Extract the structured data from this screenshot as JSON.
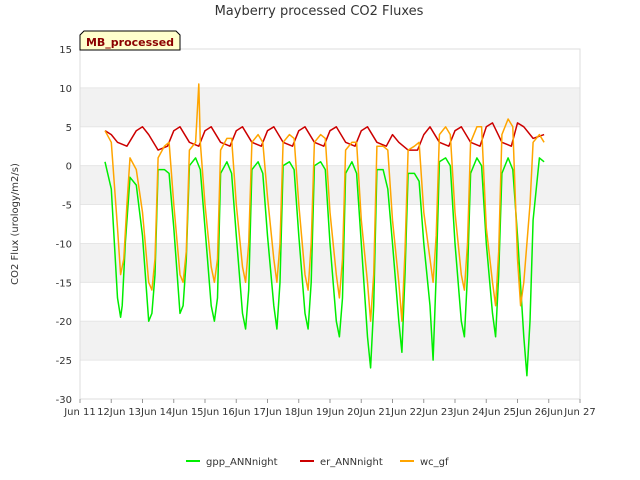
{
  "chart_data": {
    "type": "line",
    "title": "Mayberry processed CO2 Fluxes",
    "ylabel": "CO2 Flux (urology/m2/s)",
    "xlabel": "",
    "ylim": [
      -30,
      15
    ],
    "xlim": [
      11,
      27
    ],
    "yticks": [
      15,
      10,
      5,
      0,
      -5,
      -10,
      -15,
      -20,
      -25,
      -30
    ],
    "xticks": [
      {
        "v": 11,
        "label": "Jun 11"
      },
      {
        "v": 12,
        "label": "12Jun"
      },
      {
        "v": 13,
        "label": "13Jun"
      },
      {
        "v": 14,
        "label": "14Jun"
      },
      {
        "v": 15,
        "label": "15Jun"
      },
      {
        "v": 16,
        "label": "16Jun"
      },
      {
        "v": 17,
        "label": "17Jun"
      },
      {
        "v": 18,
        "label": "18Jun"
      },
      {
        "v": 19,
        "label": "19Jun"
      },
      {
        "v": 20,
        "label": "20Jun"
      },
      {
        "v": 21,
        "label": "21Jun"
      },
      {
        "v": 22,
        "label": "22Jun"
      },
      {
        "v": 23,
        "label": "23Jun"
      },
      {
        "v": 24,
        "label": "24Jun"
      },
      {
        "v": 25,
        "label": "25Jun"
      },
      {
        "v": 26,
        "label": "26Jun"
      },
      {
        "v": 27,
        "label": "Jun 27"
      }
    ],
    "badge": "MB_processed",
    "legend_position": "bottom",
    "series": [
      {
        "name": "gpp_ANNnight",
        "color": "#00ee00",
        "x": [
          11.8,
          12.0,
          12.2,
          12.3,
          12.35,
          12.45,
          12.6,
          12.8,
          13.0,
          13.2,
          13.3,
          13.4,
          13.5,
          13.7,
          13.85,
          14.0,
          14.2,
          14.3,
          14.4,
          14.5,
          14.7,
          14.85,
          15.0,
          15.2,
          15.3,
          15.4,
          15.5,
          15.7,
          15.85,
          16.0,
          16.2,
          16.3,
          16.4,
          16.5,
          16.7,
          16.85,
          17.0,
          17.2,
          17.3,
          17.4,
          17.5,
          17.7,
          17.85,
          18.0,
          18.2,
          18.3,
          18.4,
          18.5,
          18.7,
          18.85,
          19.0,
          19.2,
          19.3,
          19.4,
          19.5,
          19.7,
          19.85,
          20.0,
          20.2,
          20.3,
          20.4,
          20.5,
          20.7,
          20.85,
          21.0,
          21.2,
          21.3,
          21.4,
          21.5,
          21.7,
          21.85,
          22.0,
          22.2,
          22.3,
          22.4,
          22.5,
          22.7,
          22.85,
          23.0,
          23.2,
          23.3,
          23.4,
          23.5,
          23.7,
          23.85,
          24.0,
          24.2,
          24.3,
          24.4,
          24.5,
          24.7,
          24.85,
          25.0,
          25.2,
          25.3,
          25.4,
          25.5,
          25.7,
          25.85
        ],
        "y": [
          0.5,
          -3,
          -17,
          -19.5,
          -18,
          -10,
          -1.5,
          -2.5,
          -9,
          -20,
          -19,
          -14,
          -0.5,
          -0.5,
          -1,
          -8,
          -19,
          -18,
          -12,
          0,
          1,
          -0.5,
          -8,
          -18,
          -20,
          -17,
          -1,
          0.5,
          -1,
          -9,
          -19,
          -21,
          -16,
          -0.5,
          0.5,
          -1,
          -9,
          -18,
          -21,
          -15,
          0,
          0.5,
          -0.5,
          -9,
          -19,
          -21,
          -15,
          0,
          0.5,
          -0.5,
          -10,
          -20,
          -22,
          -17,
          -1,
          0.5,
          -1,
          -10,
          -22,
          -26,
          -18,
          -0.5,
          -0.5,
          -3,
          -10,
          -20,
          -24,
          -14,
          -1,
          -1,
          -2,
          -10,
          -18,
          -25,
          -14,
          0.5,
          1,
          0,
          -10,
          -20,
          -22,
          -14,
          -1,
          1,
          0,
          -10,
          -19,
          -22,
          -14,
          -1,
          1,
          -0.5,
          -9,
          -22,
          -27,
          -20,
          -7,
          1,
          0.5
        ]
      },
      {
        "name": "er_ANNnight",
        "color": "#cc0000",
        "x": [
          11.8,
          12.0,
          12.2,
          12.5,
          12.8,
          13.0,
          13.2,
          13.5,
          13.8,
          14.0,
          14.2,
          14.5,
          14.8,
          15.0,
          15.2,
          15.5,
          15.8,
          16.0,
          16.2,
          16.5,
          16.8,
          17.0,
          17.2,
          17.5,
          17.8,
          18.0,
          18.2,
          18.5,
          18.8,
          19.0,
          19.2,
          19.5,
          19.8,
          20.0,
          20.2,
          20.5,
          20.8,
          21.0,
          21.2,
          21.5,
          21.8,
          22.0,
          22.2,
          22.5,
          22.8,
          23.0,
          23.2,
          23.5,
          23.8,
          24.0,
          24.2,
          24.5,
          24.8,
          25.0,
          25.2,
          25.5,
          25.85
        ],
        "y": [
          4.5,
          4,
          3,
          2.5,
          4.5,
          5,
          4,
          2,
          2.5,
          4.5,
          5,
          3,
          2.5,
          4.5,
          5,
          3,
          2.5,
          4.5,
          5,
          3,
          2.5,
          4.5,
          5,
          3,
          2.5,
          4.5,
          5,
          3,
          2.5,
          4.5,
          5,
          3,
          2.5,
          4.5,
          5,
          3,
          2.5,
          4,
          3,
          2,
          2,
          4,
          5,
          3,
          2.5,
          4.5,
          5,
          3,
          2.5,
          5,
          5.5,
          3,
          2.5,
          5.5,
          5,
          3.5,
          4
        ]
      },
      {
        "name": "wc_gf",
        "color": "#ffa500",
        "x": [
          11.8,
          12.0,
          12.2,
          12.3,
          12.4,
          12.5,
          12.6,
          12.8,
          13.0,
          13.2,
          13.3,
          13.4,
          13.5,
          13.7,
          13.85,
          14.0,
          14.2,
          14.3,
          14.4,
          14.5,
          14.7,
          14.8,
          14.85,
          15.0,
          15.2,
          15.3,
          15.4,
          15.5,
          15.7,
          15.85,
          16.0,
          16.2,
          16.3,
          16.4,
          16.5,
          16.7,
          16.85,
          17.0,
          17.2,
          17.3,
          17.4,
          17.5,
          17.7,
          17.85,
          18.0,
          18.2,
          18.3,
          18.4,
          18.5,
          18.7,
          18.85,
          19.0,
          19.2,
          19.3,
          19.4,
          19.5,
          19.7,
          19.85,
          20.0,
          20.2,
          20.3,
          20.4,
          20.5,
          20.7,
          20.85,
          21.0,
          21.2,
          21.3,
          21.4,
          21.5,
          21.7,
          21.85,
          22.0,
          22.2,
          22.3,
          22.4,
          22.5,
          22.7,
          22.85,
          23.0,
          23.2,
          23.3,
          23.4,
          23.5,
          23.7,
          23.85,
          24.0,
          24.2,
          24.3,
          24.4,
          24.5,
          24.7,
          24.85,
          25.0,
          25.1,
          25.2,
          25.3,
          25.4,
          25.5,
          25.7,
          25.85
        ],
        "y": [
          4.5,
          3,
          -8,
          -14,
          -12,
          -5,
          1,
          -0.5,
          -6,
          -15,
          -16,
          -12,
          1,
          2.5,
          3,
          -5,
          -14,
          -15,
          -11,
          2,
          3,
          10.5,
          3,
          -5,
          -13,
          -15,
          -12,
          2,
          3.5,
          3.5,
          -5,
          -13,
          -15,
          -10,
          3,
          4,
          3,
          -4,
          -12,
          -15,
          -10,
          3,
          4,
          3.5,
          -5,
          -14,
          -16,
          -10,
          3,
          4,
          3.5,
          -6,
          -14,
          -17,
          -12,
          2,
          3,
          3,
          -7,
          -15,
          -20,
          -14,
          2.5,
          2.5,
          2,
          -7,
          -15,
          -20,
          -11,
          2,
          2.5,
          3,
          -6,
          -12,
          -15,
          -9,
          4,
          5,
          4,
          -6,
          -14,
          -16,
          -10,
          3,
          5,
          5,
          -8,
          -15,
          -18,
          -11,
          4,
          6,
          5,
          -12,
          -18,
          -15,
          -10,
          -5,
          3,
          4,
          3
        ]
      }
    ]
  }
}
